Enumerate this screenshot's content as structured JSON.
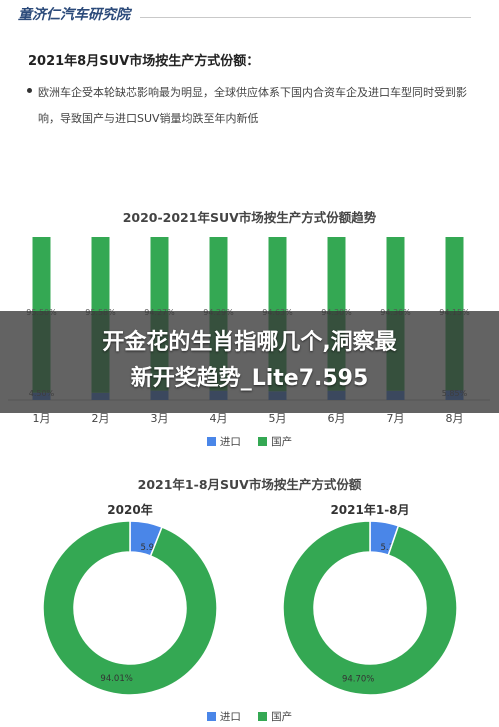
{
  "brand": "童济仁汽车研究院",
  "section_title": "2021年8月SUV市场按生产方式份额：",
  "bullet": "欧洲车企受本轮缺芯影响最为明显，全球供应体系下国内合资车企及进口车型同时受到影响，导致国产与进口SUV销量均跌至年内新低",
  "colors": {
    "import": "#4a86e8",
    "domestic": "#34a853"
  },
  "overlay": {
    "line1": "开金花的生肖指哪几个,洞察最",
    "line2": "新开奖趋势_Lite7.595"
  },
  "chart_data": [
    {
      "type": "bar",
      "stacked": true,
      "title": "2020-2021年SUV市场按生产方式份额趋势",
      "categories": [
        "1月",
        "2月",
        "3月",
        "4月",
        "5月",
        "6月",
        "7月",
        "8月"
      ],
      "ylim": [
        0,
        100
      ],
      "legend_position": "bottom",
      "series": [
        {
          "name": "进口",
          "color": "#4a86e8",
          "values": [
            4.5,
            4.42,
            5.73,
            5.71,
            5.37,
            5.7,
            5.64,
            5.85
          ],
          "labels": [
            "4.50%",
            "",
            "",
            "",
            "",
            "",
            "",
            "5.85%"
          ]
        },
        {
          "name": "国产",
          "color": "#34a853",
          "values": [
            95.5,
            95.58,
            94.27,
            94.29,
            94.63,
            94.3,
            94.36,
            94.15
          ],
          "labels": [
            "95.50%",
            "95.58%",
            "94.27%",
            "94.29%",
            "94.63%",
            "94.30%",
            "94.36%",
            "94.15%"
          ]
        }
      ]
    },
    {
      "type": "pie",
      "title": "2021年1-8月SUV市场按生产方式份额",
      "legend_position": "bottom",
      "legend": [
        "进口",
        "国产"
      ],
      "pies": [
        {
          "title": "2020年",
          "slices": [
            {
              "name": "进口",
              "value": 5.99,
              "label": "5.99%",
              "color": "#4a86e8"
            },
            {
              "name": "国产",
              "value": 94.01,
              "label": "94.01%",
              "color": "#34a853"
            }
          ]
        },
        {
          "title": "2021年1-8月",
          "slices": [
            {
              "name": "进口",
              "value": 5.3,
              "label": "5.30%",
              "color": "#4a86e8"
            },
            {
              "name": "国产",
              "value": 94.7,
              "label": "94.70%",
              "color": "#34a853"
            }
          ]
        }
      ]
    }
  ]
}
